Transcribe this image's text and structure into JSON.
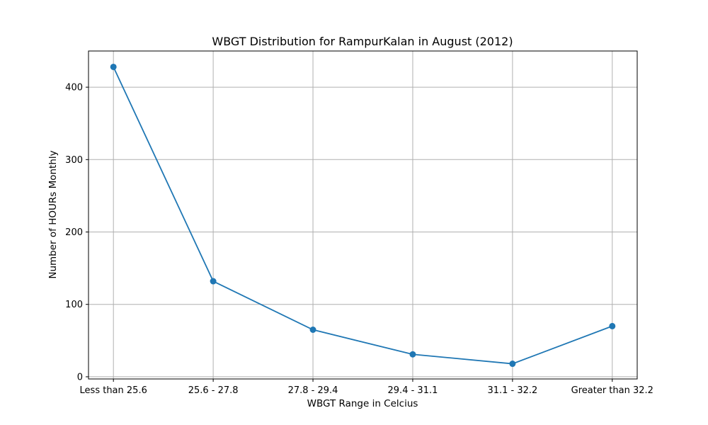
{
  "chart_data": {
    "type": "line",
    "title": "WBGT Distribution for RampurKalan in August (2012)",
    "xlabel": "WBGT Range in Celcius",
    "ylabel": "Number of HOURs Monthly",
    "categories": [
      "Less than 25.6",
      "25.6 - 27.8",
      "27.8 - 29.4",
      "29.4 - 31.1",
      "31.1 - 32.2",
      "Greater than 32.2"
    ],
    "series": [
      {
        "values": [
          428,
          132,
          65,
          31,
          18,
          70
        ]
      }
    ],
    "ylim": [
      -3,
      450
    ],
    "yticks": [
      0,
      100,
      200,
      300,
      400
    ],
    "grid": true,
    "color": "#1f77b4"
  }
}
